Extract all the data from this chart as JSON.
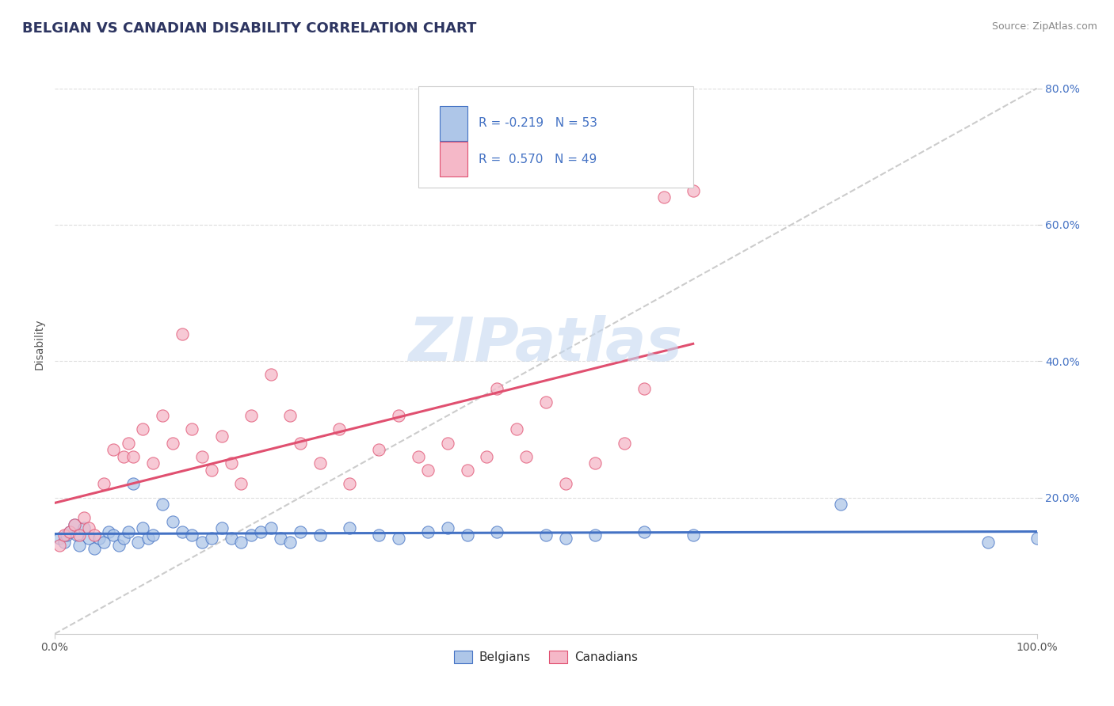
{
  "title": "BELGIAN VS CANADIAN DISABILITY CORRELATION CHART",
  "source": "Source: ZipAtlas.com",
  "ylabel": "Disability",
  "watermark": "ZIPatlas",
  "belgians_R": -0.219,
  "belgians_N": 53,
  "canadians_R": 0.57,
  "canadians_N": 49,
  "belgian_color": "#aec6e8",
  "canadian_color": "#f5b8c8",
  "belgian_line_color": "#4472c4",
  "canadian_line_color": "#e05070",
  "trend_line_color": "#cccccc",
  "belgians_x": [
    0.5,
    1.0,
    1.2,
    1.5,
    2.0,
    2.3,
    2.5,
    3.0,
    3.5,
    4.0,
    4.5,
    5.0,
    5.5,
    6.0,
    6.5,
    7.0,
    7.5,
    8.0,
    8.5,
    9.0,
    9.5,
    10.0,
    11.0,
    12.0,
    13.0,
    14.0,
    15.0,
    16.0,
    17.0,
    18.0,
    19.0,
    20.0,
    21.0,
    22.0,
    23.0,
    24.0,
    25.0,
    27.0,
    30.0,
    33.0,
    35.0,
    38.0,
    40.0,
    42.0,
    45.0,
    50.0,
    52.0,
    55.0,
    60.0,
    65.0,
    80.0,
    95.0,
    100.0
  ],
  "belgians_y": [
    14.0,
    13.5,
    14.5,
    15.0,
    16.0,
    14.5,
    13.0,
    15.5,
    14.0,
    12.5,
    14.0,
    13.5,
    15.0,
    14.5,
    13.0,
    14.0,
    15.0,
    22.0,
    13.5,
    15.5,
    14.0,
    14.5,
    19.0,
    16.5,
    15.0,
    14.5,
    13.5,
    14.0,
    15.5,
    14.0,
    13.5,
    14.5,
    15.0,
    15.5,
    14.0,
    13.5,
    15.0,
    14.5,
    15.5,
    14.5,
    14.0,
    15.0,
    15.5,
    14.5,
    15.0,
    14.5,
    14.0,
    14.5,
    15.0,
    14.5,
    19.0,
    13.5,
    14.0
  ],
  "canadians_x": [
    0.5,
    1.0,
    1.5,
    2.0,
    2.5,
    3.0,
    3.5,
    4.0,
    5.0,
    6.0,
    7.0,
    7.5,
    8.0,
    9.0,
    10.0,
    11.0,
    12.0,
    13.0,
    14.0,
    15.0,
    16.0,
    17.0,
    18.0,
    19.0,
    20.0,
    22.0,
    24.0,
    25.0,
    27.0,
    29.0,
    30.0,
    33.0,
    35.0,
    37.0,
    38.0,
    40.0,
    42.0,
    44.0,
    45.0,
    47.0,
    48.0,
    50.0,
    52.0,
    55.0,
    58.0,
    60.0,
    62.0,
    63.0,
    65.0
  ],
  "canadians_y": [
    13.0,
    14.5,
    15.0,
    16.0,
    14.5,
    17.0,
    15.5,
    14.5,
    22.0,
    27.0,
    26.0,
    28.0,
    26.0,
    30.0,
    25.0,
    32.0,
    28.0,
    44.0,
    30.0,
    26.0,
    24.0,
    29.0,
    25.0,
    22.0,
    32.0,
    38.0,
    32.0,
    28.0,
    25.0,
    30.0,
    22.0,
    27.0,
    32.0,
    26.0,
    24.0,
    28.0,
    24.0,
    26.0,
    36.0,
    30.0,
    26.0,
    34.0,
    22.0,
    25.0,
    28.0,
    36.0,
    64.0,
    68.0,
    65.0
  ],
  "xlim": [
    0,
    100
  ],
  "ylim": [
    0,
    85
  ],
  "yticks": [
    20,
    40,
    60,
    80
  ],
  "ytick_labels": [
    "20.0%",
    "40.0%",
    "60.0%",
    "80.0%"
  ],
  "xticks": [
    0,
    100
  ],
  "xtick_labels": [
    "0.0%",
    "100.0%"
  ],
  "title_fontsize": 13,
  "axis_fontsize": 10,
  "legend_fontsize": 11,
  "source_fontsize": 9
}
